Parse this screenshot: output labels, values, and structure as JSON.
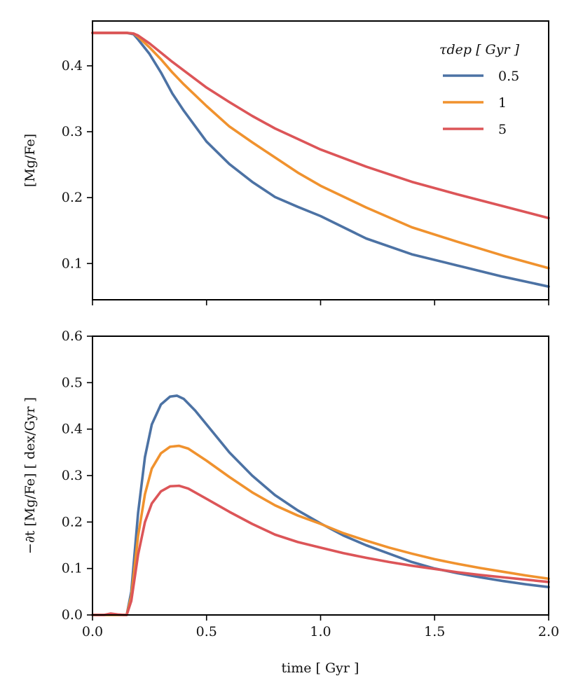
{
  "chart_data": [
    {
      "type": "line",
      "panel": "top",
      "title": "",
      "xlabel": "",
      "ylabel": "[Mg/Fe]",
      "xlim": [
        0.0,
        2.0
      ],
      "ylim": [
        0.045,
        0.468
      ],
      "xticks": [
        0.0,
        0.5,
        1.0,
        1.5,
        2.0
      ],
      "xtick_labels_shown": false,
      "yticks": [
        0.1,
        0.2,
        0.3,
        0.4
      ],
      "ytick_labels": [
        "0.1",
        "0.2",
        "0.3",
        "0.4"
      ],
      "grid": false,
      "legend": {
        "title": "τdep [ Gyr ]",
        "position": "top-right"
      },
      "series": [
        {
          "name": "0.5",
          "color": "#4c72a4",
          "x": [
            0.0,
            0.1,
            0.15,
            0.18,
            0.2,
            0.25,
            0.3,
            0.35,
            0.4,
            0.5,
            0.6,
            0.7,
            0.8,
            0.9,
            1.0,
            1.2,
            1.4,
            1.6,
            1.8,
            2.0
          ],
          "y": [
            0.45,
            0.45,
            0.45,
            0.448,
            0.44,
            0.418,
            0.39,
            0.358,
            0.332,
            0.285,
            0.251,
            0.224,
            0.201,
            0.186,
            0.172,
            0.138,
            0.114,
            0.097,
            0.08,
            0.065
          ]
        },
        {
          "name": "1",
          "color": "#f0922e",
          "x": [
            0.0,
            0.1,
            0.15,
            0.18,
            0.2,
            0.25,
            0.3,
            0.35,
            0.4,
            0.5,
            0.6,
            0.7,
            0.8,
            0.9,
            1.0,
            1.2,
            1.4,
            1.6,
            1.8,
            2.0
          ],
          "y": [
            0.45,
            0.45,
            0.45,
            0.449,
            0.444,
            0.428,
            0.41,
            0.39,
            0.372,
            0.339,
            0.308,
            0.284,
            0.261,
            0.238,
            0.218,
            0.185,
            0.155,
            0.133,
            0.112,
            0.093
          ]
        },
        {
          "name": "5",
          "color": "#dc5558",
          "x": [
            0.0,
            0.1,
            0.15,
            0.18,
            0.2,
            0.25,
            0.3,
            0.35,
            0.4,
            0.5,
            0.6,
            0.7,
            0.8,
            0.9,
            1.0,
            1.2,
            1.4,
            1.6,
            1.8,
            2.0
          ],
          "y": [
            0.45,
            0.45,
            0.45,
            0.449,
            0.446,
            0.434,
            0.42,
            0.406,
            0.393,
            0.367,
            0.345,
            0.324,
            0.305,
            0.289,
            0.273,
            0.247,
            0.224,
            0.205,
            0.187,
            0.169
          ]
        }
      ]
    },
    {
      "type": "line",
      "panel": "bottom",
      "title": "",
      "xlabel": "time [ Gyr ]",
      "ylabel": "−∂t [Mg/Fe] [ dex/Gyr ]",
      "xlim": [
        0.0,
        2.0
      ],
      "ylim": [
        0.0,
        0.6
      ],
      "xticks": [
        0.0,
        0.5,
        1.0,
        1.5,
        2.0
      ],
      "xtick_labels": [
        "0.0",
        "0.5",
        "1.0",
        "1.5",
        "2.0"
      ],
      "yticks": [
        0.0,
        0.1,
        0.2,
        0.3,
        0.4,
        0.5,
        0.6
      ],
      "ytick_labels": [
        "0.0",
        "0.1",
        "0.2",
        "0.3",
        "0.4",
        "0.5",
        "0.6"
      ],
      "grid": false,
      "series": [
        {
          "name": "0.5",
          "color": "#4c72a4",
          "x": [
            0.0,
            0.05,
            0.1,
            0.14,
            0.15,
            0.17,
            0.2,
            0.23,
            0.26,
            0.3,
            0.34,
            0.37,
            0.4,
            0.45,
            0.5,
            0.6,
            0.7,
            0.8,
            0.9,
            1.0,
            1.1,
            1.2,
            1.3,
            1.4,
            1.5,
            1.6,
            1.7,
            1.8,
            1.9,
            2.0
          ],
          "y": [
            0.0,
            0.0,
            0.0,
            0.0,
            0.0,
            0.05,
            0.22,
            0.34,
            0.41,
            0.453,
            0.47,
            0.472,
            0.465,
            0.44,
            0.41,
            0.35,
            0.3,
            0.258,
            0.225,
            0.197,
            0.171,
            0.15,
            0.132,
            0.114,
            0.1,
            0.09,
            0.081,
            0.073,
            0.066,
            0.06
          ]
        },
        {
          "name": "1",
          "color": "#f0922e",
          "x": [
            0.0,
            0.05,
            0.1,
            0.14,
            0.15,
            0.17,
            0.2,
            0.23,
            0.26,
            0.3,
            0.34,
            0.38,
            0.42,
            0.5,
            0.6,
            0.7,
            0.8,
            0.9,
            1.0,
            1.1,
            1.2,
            1.3,
            1.4,
            1.5,
            1.6,
            1.7,
            1.8,
            1.9,
            2.0
          ],
          "y": [
            0.0,
            0.0,
            0.0,
            0.0,
            0.0,
            0.04,
            0.17,
            0.26,
            0.315,
            0.348,
            0.362,
            0.364,
            0.358,
            0.332,
            0.297,
            0.264,
            0.236,
            0.214,
            0.196,
            0.176,
            0.16,
            0.145,
            0.132,
            0.12,
            0.11,
            0.101,
            0.093,
            0.085,
            0.078
          ]
        },
        {
          "name": "5",
          "color": "#dc5558",
          "x": [
            0.0,
            0.05,
            0.08,
            0.11,
            0.14,
            0.15,
            0.17,
            0.2,
            0.23,
            0.26,
            0.3,
            0.34,
            0.38,
            0.42,
            0.5,
            0.6,
            0.7,
            0.8,
            0.9,
            1.0,
            1.1,
            1.2,
            1.3,
            1.4,
            1.5,
            1.6,
            1.7,
            1.8,
            1.9,
            2.0
          ],
          "y": [
            0.0,
            0.0,
            0.003,
            0.001,
            0.0,
            0.0,
            0.03,
            0.13,
            0.2,
            0.24,
            0.266,
            0.277,
            0.278,
            0.272,
            0.25,
            0.222,
            0.196,
            0.173,
            0.157,
            0.145,
            0.133,
            0.123,
            0.114,
            0.106,
            0.099,
            0.092,
            0.086,
            0.081,
            0.076,
            0.071
          ]
        }
      ]
    }
  ]
}
